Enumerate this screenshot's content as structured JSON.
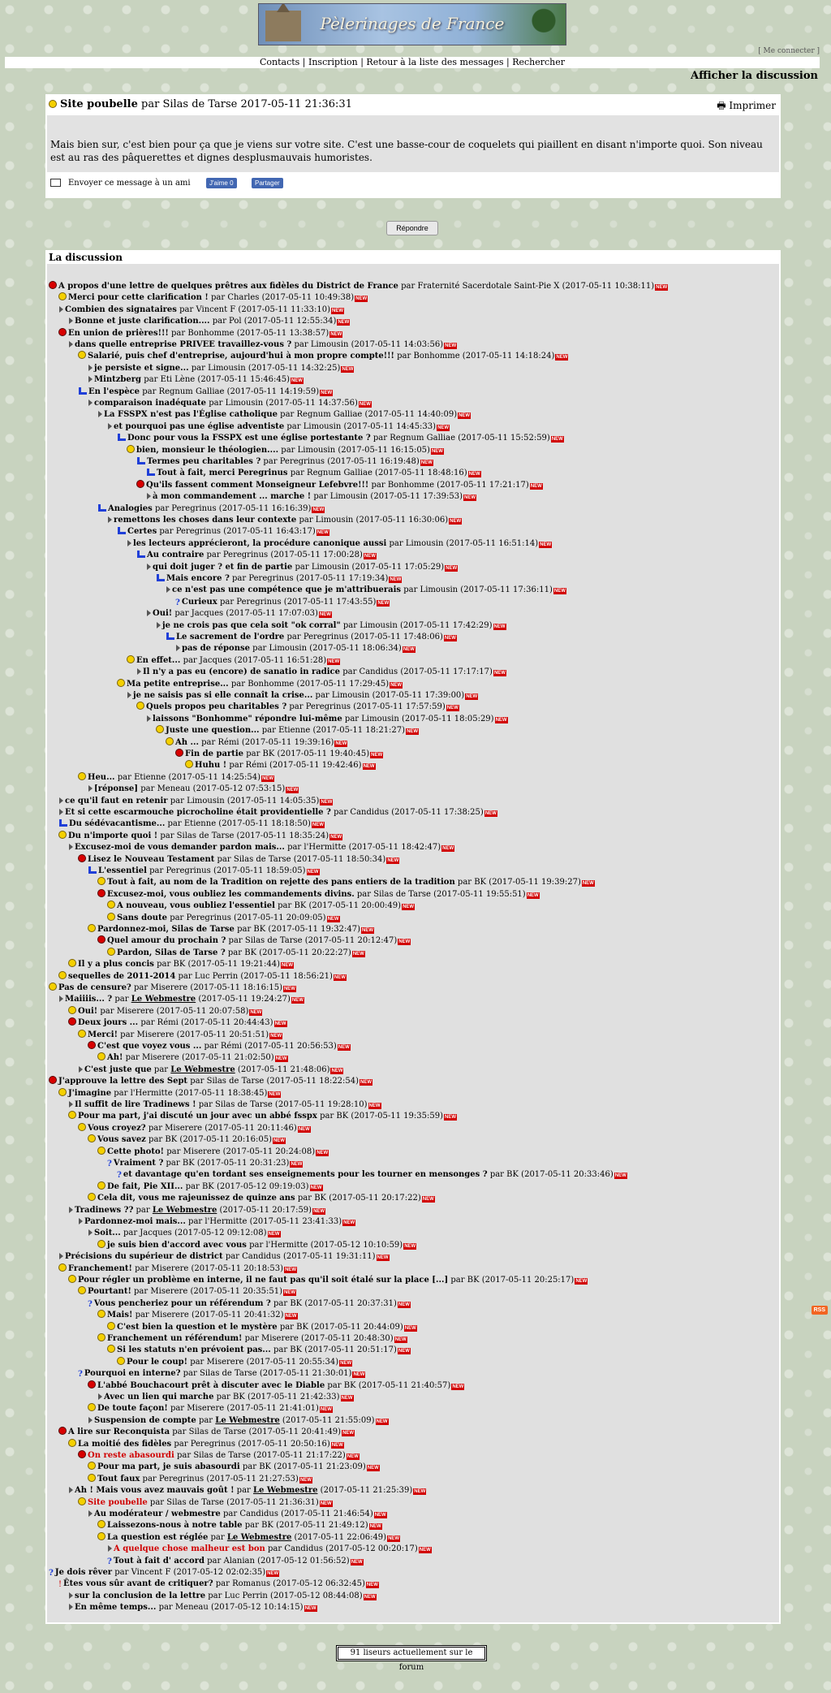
{
  "header": {
    "site_title": "Pèlerinages de France",
    "login_link": "[ Me connecter ]",
    "nav": [
      "Contacts",
      "Inscription",
      "Retour à la liste des messages",
      "Rechercher"
    ],
    "nav_sep": " | ",
    "show_discussion": "Afficher la discussion"
  },
  "message": {
    "subject": "Site poubelle",
    "by": "par",
    "author": "Silas de Tarse",
    "date": "2017-05-11 21:36:31",
    "print_label": "Imprimer",
    "body": "Mais bien sur, c'est bien pour ça que je viens sur votre site. C'est une basse-cour de coquelets qui piaillent en disant n'importe quoi. Son niveau est au ras des pâquerettes et dignes desplusmauvais humoristes.",
    "send_friend": "Envoyer ce message à un ami",
    "fb_like": "J'aime 0",
    "fb_share": "Partager",
    "reply_button": "Répondre"
  },
  "discussion": {
    "title": "La discussion",
    "new_badge": "NEW",
    "posts": [
      {
        "t": "A propos d'une lettre de quelques prêtres aux fidèles du District de France",
        "a": "Fraternité Sacerdotale Saint-Pie X",
        "d": "2017-05-11 10:38:11",
        "l": 0,
        "i": "red"
      },
      {
        "t": "Merci pour cette clarification !",
        "a": "Charles",
        "d": "2017-05-11 10:49:38",
        "l": 1,
        "i": "yellow"
      },
      {
        "t": "Combien des signataires",
        "a": "Vincent F",
        "d": "2017-05-11 11:33:10",
        "l": 1,
        "i": "sq"
      },
      {
        "t": "Bonne et juste clarification....",
        "a": "Pol",
        "d": "2017-05-11 12:55:34",
        "l": 2,
        "i": "sq"
      },
      {
        "t": "En union de prières!!!",
        "a": "Bonhomme",
        "d": "2017-05-11 13:38:57",
        "l": 1,
        "i": "red"
      },
      {
        "t": "dans quelle entreprise PRIVEE travaillez-vous ?",
        "a": "Limousin",
        "d": "2017-05-11 14:03:56",
        "l": 2,
        "i": "sq"
      },
      {
        "t": "Salarié, puis chef d'entreprise, aujourd'hui à mon propre compte!!!",
        "a": "Bonhomme",
        "d": "2017-05-11 14:18:24",
        "l": 3,
        "i": "yellow"
      },
      {
        "t": "je persiste et signe...",
        "a": "Limousin",
        "d": "2017-05-11 14:32:25",
        "l": 4,
        "i": "sq"
      },
      {
        "t": "Mintzberg",
        "a": "Eti Lène",
        "d": "2017-05-11 15:46:45",
        "l": 4,
        "i": "sq"
      },
      {
        "t": "En l'espèce",
        "a": "Regnum Galliae",
        "d": "2017-05-11 14:19:59",
        "l": 3,
        "i": "arrow"
      },
      {
        "t": "comparaison inadéquate",
        "a": "Limousin",
        "d": "2017-05-11 14:37:56",
        "l": 4,
        "i": "sq"
      },
      {
        "t": "La FSSPX n'est pas l'Église catholique",
        "a": "Regnum Galliae",
        "d": "2017-05-11 14:40:09",
        "l": 5,
        "i": "sq"
      },
      {
        "t": "et pourquoi pas une église adventiste",
        "a": "Limousin",
        "d": "2017-05-11 14:45:33",
        "l": 6,
        "i": "sq"
      },
      {
        "t": "Donc pour vous la FSSPX est une église portestante ?",
        "a": "Regnum Galliae",
        "d": "2017-05-11 15:52:59",
        "l": 7,
        "i": "arrow"
      },
      {
        "t": "bien, monsieur le théologien....",
        "a": "Limousin",
        "d": "2017-05-11 16:15:05",
        "l": 8,
        "i": "yellow"
      },
      {
        "t": "Termes peu charitables ?",
        "a": "Peregrinus",
        "d": "2017-05-11 16:19:48",
        "l": 9,
        "i": "arrow"
      },
      {
        "t": "Tout à fait, merci Peregrinus",
        "a": "Regnum Galliae",
        "d": "2017-05-11 18:48:16",
        "l": 10,
        "i": "arrow"
      },
      {
        "t": "Qu'ils fassent comment Monseigneur Lefebvre!!!",
        "a": "Bonhomme",
        "d": "2017-05-11 17:21:17",
        "l": 9,
        "i": "red"
      },
      {
        "t": "à mon commandement ... marche !",
        "a": "Limousin",
        "d": "2017-05-11 17:39:53",
        "l": 10,
        "i": "sq"
      },
      {
        "t": "Analogies",
        "a": "Peregrinus",
        "d": "2017-05-11 16:16:39",
        "l": 5,
        "i": "arrow"
      },
      {
        "t": "remettons les choses dans leur contexte",
        "a": "Limousin",
        "d": "2017-05-11 16:30:06",
        "l": 6,
        "i": "sq"
      },
      {
        "t": "Certes",
        "a": "Peregrinus",
        "d": "2017-05-11 16:43:17",
        "l": 7,
        "i": "arrow"
      },
      {
        "t": "les lecteurs apprécieront, la procédure canonique aussi",
        "a": "Limousin",
        "d": "2017-05-11 16:51:14",
        "l": 8,
        "i": "sq"
      },
      {
        "t": "Au contraire",
        "a": "Peregrinus",
        "d": "2017-05-11 17:00:28",
        "l": 9,
        "i": "arrow"
      },
      {
        "t": "qui doit juger ? et fin de partie",
        "a": "Limousin",
        "d": "2017-05-11 17:05:29",
        "l": 10,
        "i": "sq"
      },
      {
        "t": "Mais encore ?",
        "a": "Peregrinus",
        "d": "2017-05-11 17:19:34",
        "l": 11,
        "i": "arrow"
      },
      {
        "t": "ce n'est pas une compétence que je m'attribuerais",
        "a": "Limousin",
        "d": "2017-05-11 17:36:11",
        "l": 12,
        "i": "sq"
      },
      {
        "t": "Curieux",
        "a": "Peregrinus",
        "d": "2017-05-11 17:43:55",
        "l": 13,
        "i": "q"
      },
      {
        "t": "Oui!",
        "a": "Jacques",
        "d": "2017-05-11 17:07:03",
        "l": 10,
        "i": "sq"
      },
      {
        "t": "je ne crois pas que cela soit \"ok corral\"",
        "a": "Limousin",
        "d": "2017-05-11 17:42:29",
        "l": 11,
        "i": "sq"
      },
      {
        "t": "Le sacrement de l'ordre",
        "a": "Peregrinus",
        "d": "2017-05-11 17:48:06",
        "l": 12,
        "i": "arrow"
      },
      {
        "t": "pas de réponse",
        "a": "Limousin",
        "d": "2017-05-11 18:06:34",
        "l": 13,
        "i": "sq"
      },
      {
        "t": "En effet...",
        "a": "Jacques",
        "d": "2017-05-11 16:51:28",
        "l": 8,
        "i": "yellow"
      },
      {
        "t": "Il n'y a pas eu (encore) de sanatio in radice",
        "a": "Candidus",
        "d": "2017-05-11 17:17:17",
        "l": 9,
        "i": "sq"
      },
      {
        "t": "Ma petite entreprise...",
        "a": "Bonhomme",
        "d": "2017-05-11 17:29:45",
        "l": 7,
        "i": "yellow"
      },
      {
        "t": "je ne saisis pas si elle connaît la crise...",
        "a": "Limousin",
        "d": "2017-05-11 17:39:00",
        "l": 8,
        "i": "sq"
      },
      {
        "t": "Quels propos peu charitables ?",
        "a": "Peregrinus",
        "d": "2017-05-11 17:57:59",
        "l": 9,
        "i": "yellow"
      },
      {
        "t": "laissons \"Bonhomme\" répondre lui-même",
        "a": "Limousin",
        "d": "2017-05-11 18:05:29",
        "l": 10,
        "i": "sq"
      },
      {
        "t": "Juste une question...",
        "a": "Etienne",
        "d": "2017-05-11 18:21:27",
        "l": 11,
        "i": "yellow"
      },
      {
        "t": "Ah ...",
        "a": "Rémi",
        "d": "2017-05-11 19:39:16",
        "l": 12,
        "i": "yellow"
      },
      {
        "t": "Fin de partie",
        "a": "BK",
        "d": "2017-05-11 19:40:45",
        "l": 13,
        "i": "red"
      },
      {
        "t": "Huhu !",
        "a": "Rémi",
        "d": "2017-05-11 19:42:46",
        "l": 14,
        "i": "yellow"
      },
      {
        "t": "Heu...",
        "a": "Etienne",
        "d": "2017-05-11 14:25:54",
        "l": 3,
        "i": "yellow"
      },
      {
        "t": "[réponse]",
        "a": "Meneau",
        "d": "2017-05-12 07:53:15",
        "l": 4,
        "i": "sq"
      },
      {
        "t": "ce qu'il faut en retenir",
        "a": "Limousin",
        "d": "2017-05-11 14:05:35",
        "l": 1,
        "i": "sq"
      },
      {
        "t": "Et si cette escarmouche picrocholine était providentielle ?",
        "a": "Candidus",
        "d": "2017-05-11 17:38:25",
        "l": 1,
        "i": "sq"
      },
      {
        "t": "Du sédévacantisme...",
        "a": "Etienne",
        "d": "2017-05-11 18:18:50",
        "l": 1,
        "i": "arrow"
      },
      {
        "t": "Du n'importe quoi !",
        "a": "Silas de Tarse",
        "d": "2017-05-11 18:35:24",
        "l": 1,
        "i": "yellow"
      },
      {
        "t": "Excusez-moi de vous demander pardon mais...",
        "a": "l'Hermitte",
        "d": "2017-05-11 18:42:47",
        "l": 2,
        "i": "sq"
      },
      {
        "t": "Lisez le Nouveau Testament",
        "a": "Silas de Tarse",
        "d": "2017-05-11 18:50:34",
        "l": 3,
        "i": "red"
      },
      {
        "t": "L'essentiel",
        "a": "Peregrinus",
        "d": "2017-05-11 18:59:05",
        "l": 4,
        "i": "arrow"
      },
      {
        "t": "Tout à fait, au nom de la Tradition on rejette des pans entiers de la tradition",
        "a": "BK",
        "d": "2017-05-11 19:39:27",
        "l": 5,
        "i": "yellow"
      },
      {
        "t": "Excusez-moi, vous oubliez les commandements divins.",
        "a": "Silas de Tarse",
        "d": "2017-05-11 19:55:51",
        "l": 5,
        "i": "red"
      },
      {
        "t": "A nouveau, vous oubliez l'essentiel",
        "a": "BK",
        "d": "2017-05-11 20:00:49",
        "l": 6,
        "i": "yellow"
      },
      {
        "t": "Sans doute",
        "a": "Peregrinus",
        "d": "2017-05-11 20:09:05",
        "l": 6,
        "i": "yellow"
      },
      {
        "t": "Pardonnez-moi, Silas de Tarse",
        "a": "BK",
        "d": "2017-05-11 19:32:47",
        "l": 4,
        "i": "yellow"
      },
      {
        "t": "Quel amour du prochain ?",
        "a": "Silas de Tarse",
        "d": "2017-05-11 20:12:47",
        "l": 5,
        "i": "red"
      },
      {
        "t": "Pardon, Silas de Tarse ?",
        "a": "BK",
        "d": "2017-05-11 20:22:27",
        "l": 6,
        "i": "yellow"
      },
      {
        "t": "Il y a plus concis",
        "a": "BK",
        "d": "2017-05-11 19:21:44",
        "l": 2,
        "i": "yellow"
      },
      {
        "t": "sequelles de 2011-2014",
        "a": "Luc Perrin",
        "d": "2017-05-11 18:56:21",
        "l": 1,
        "i": "yellow"
      },
      {
        "t": "Pas de censure?",
        "a": "Miserere",
        "d": "2017-05-11 18:16:15",
        "l": 0,
        "i": "yellow"
      },
      {
        "t": "Maiiiis... ?",
        "a": "Le Webmestre",
        "d": "2017-05-11 19:24:27",
        "l": 1,
        "i": "sq",
        "al": true
      },
      {
        "t": "Oui!",
        "a": "Miserere",
        "d": "2017-05-11 20:07:58",
        "l": 2,
        "i": "yellow"
      },
      {
        "t": "Deux jours ...",
        "a": "Rémi",
        "d": "2017-05-11 20:44:43",
        "l": 2,
        "i": "red"
      },
      {
        "t": "Merci!",
        "a": "Miserere",
        "d": "2017-05-11 20:51:51",
        "l": 3,
        "i": "yellow"
      },
      {
        "t": "C'est que voyez vous ...",
        "a": "Rémi",
        "d": "2017-05-11 20:56:53",
        "l": 4,
        "i": "red"
      },
      {
        "t": "Ah!",
        "a": "Miserere",
        "d": "2017-05-11 21:02:50",
        "l": 5,
        "i": "yellow"
      },
      {
        "t": "C'est juste que",
        "a": "Le Webmestre",
        "d": "2017-05-11 21:48:06",
        "l": 3,
        "i": "sq",
        "al": true
      },
      {
        "t": "J'approuve la lettre des Sept",
        "a": "Silas de Tarse",
        "d": "2017-05-11 18:22:54",
        "l": 0,
        "i": "red"
      },
      {
        "t": "J'imagine",
        "a": "l'Hermitte",
        "d": "2017-05-11 18:38:45",
        "l": 1,
        "i": "yellow"
      },
      {
        "t": "Il suffit de lire Tradinews !",
        "a": "Silas de Tarse",
        "d": "2017-05-11 19:28:10",
        "l": 2,
        "i": "sq"
      },
      {
        "t": "Pour ma part, j'ai discuté un jour avec un abbé fsspx",
        "a": "BK",
        "d": "2017-05-11 19:35:59",
        "l": 2,
        "i": "yellow"
      },
      {
        "t": "Vous croyez?",
        "a": "Miserere",
        "d": "2017-05-11 20:11:46",
        "l": 3,
        "i": "yellow"
      },
      {
        "t": "Vous savez",
        "a": "BK",
        "d": "2017-05-11 20:16:05",
        "l": 4,
        "i": "yellow"
      },
      {
        "t": "Cette photo!",
        "a": "Miserere",
        "d": "2017-05-11 20:24:08",
        "l": 5,
        "i": "yellow"
      },
      {
        "t": "Vraiment ?",
        "a": "BK",
        "d": "2017-05-11 20:31:23",
        "l": 6,
        "i": "q"
      },
      {
        "t": "et davantage qu'en tordant ses enseignements pour les tourner en mensonges ?",
        "a": "BK",
        "d": "2017-05-11 20:33:46",
        "l": 7,
        "i": "q"
      },
      {
        "t": "De fait, Pie XII...",
        "a": "BK",
        "d": "2017-05-12 09:19:03",
        "l": 5,
        "i": "yellow"
      },
      {
        "t": "Cela dit, vous me rajeunissez de quinze ans",
        "a": "BK",
        "d": "2017-05-11 20:17:22",
        "l": 4,
        "i": "yellow"
      },
      {
        "t": "Tradinews ??",
        "a": "Le Webmestre",
        "d": "2017-05-11 20:17:59",
        "l": 2,
        "i": "sq",
        "al": true
      },
      {
        "t": "Pardonnez-moi mais...",
        "a": "l'Hermitte",
        "d": "2017-05-11 23:41:33",
        "l": 3,
        "i": "sq"
      },
      {
        "t": "Soit...",
        "a": "Jacques",
        "d": "2017-05-12 09:12:08",
        "l": 4,
        "i": "sq"
      },
      {
        "t": "je suis bien d'accord avec vous",
        "a": "l'Hermitte",
        "d": "2017-05-12 10:10:59",
        "l": 5,
        "i": "yellow"
      },
      {
        "t": "Précisions du supérieur de district",
        "a": "Candidus",
        "d": "2017-05-11 19:31:11",
        "l": 1,
        "i": "sq"
      },
      {
        "t": "Franchement!",
        "a": "Miserere",
        "d": "2017-05-11 20:18:53",
        "l": 1,
        "i": "yellow"
      },
      {
        "t": "Pour régler un problème en interne, il ne faut pas qu'il soit étalé sur la place [...]",
        "a": "BK",
        "d": "2017-05-11 20:25:17",
        "l": 2,
        "i": "yellow"
      },
      {
        "t": "Pourtant!",
        "a": "Miserere",
        "d": "2017-05-11 20:35:51",
        "l": 3,
        "i": "yellow"
      },
      {
        "t": "Vous pencheriez pour un référendum ?",
        "a": "BK",
        "d": "2017-05-11 20:37:31",
        "l": 4,
        "i": "q"
      },
      {
        "t": "Mais!",
        "a": "Miserere",
        "d": "2017-05-11 20:41:32",
        "l": 5,
        "i": "yellow"
      },
      {
        "t": "C'est bien la question et le mystère",
        "a": "BK",
        "d": "2017-05-11 20:44:09",
        "l": 6,
        "i": "yellow"
      },
      {
        "t": "Franchement un référendum!",
        "a": "Miserere",
        "d": "2017-05-11 20:48:30",
        "l": 5,
        "i": "yellow"
      },
      {
        "t": "Si les statuts n'en prévoient pas...",
        "a": "BK",
        "d": "2017-05-11 20:51:17",
        "l": 6,
        "i": "yellow"
      },
      {
        "t": "Pour le coup!",
        "a": "Miserere",
        "d": "2017-05-11 20:55:34",
        "l": 7,
        "i": "yellow"
      },
      {
        "t": "Pourquoi en interne?",
        "a": "Silas de Tarse",
        "d": "2017-05-11 21:30:01",
        "l": 3,
        "i": "q"
      },
      {
        "t": "L'abbé Bouchacourt prêt à discuter avec le Diable",
        "a": "BK",
        "d": "2017-05-11 21:40:57",
        "l": 4,
        "i": "red"
      },
      {
        "t": "Avec un lien qui marche",
        "a": "BK",
        "d": "2017-05-11 21:42:33",
        "l": 5,
        "i": "sq"
      },
      {
        "t": "De toute façon!",
        "a": "Miserere",
        "d": "2017-05-11 21:41:01",
        "l": 4,
        "i": "yellow"
      },
      {
        "t": "Suspension de compte",
        "a": "Le Webmestre",
        "d": "2017-05-11 21:55:09",
        "l": 4,
        "i": "sq",
        "al": true
      },
      {
        "t": "A lire sur Reconquista",
        "a": "Silas de Tarse",
        "d": "2017-05-11 20:41:49",
        "l": 1,
        "i": "red"
      },
      {
        "t": "La moitié des fidèles",
        "a": "Peregrinus",
        "d": "2017-05-11 20:50:16",
        "l": 2,
        "i": "yellow"
      },
      {
        "t": "On reste abasourdi",
        "a": "Silas de Tarse",
        "d": "2017-05-11 21:17:22",
        "l": 3,
        "i": "red",
        "red": true
      },
      {
        "t": "Pour ma part, je suis abasourdi",
        "a": "BK",
        "d": "2017-05-11 21:23:09",
        "l": 4,
        "i": "yellow"
      },
      {
        "t": "Tout faux",
        "a": "Peregrinus",
        "d": "2017-05-11 21:27:53",
        "l": 4,
        "i": "yellow"
      },
      {
        "t": "Ah ! Mais vous avez mauvais goût !",
        "a": "Le Webmestre",
        "d": "2017-05-11 21:25:39",
        "l": 2,
        "i": "sq",
        "al": true
      },
      {
        "t": "Site poubelle",
        "a": "Silas de Tarse",
        "d": "2017-05-11 21:36:31",
        "l": 3,
        "i": "yellow",
        "red": true
      },
      {
        "t": "Au modérateur / webmestre",
        "a": "Candidus",
        "d": "2017-05-11 21:46:54",
        "l": 4,
        "i": "sq"
      },
      {
        "t": "Laissezons-nous à notre table",
        "a": "BK",
        "d": "2017-05-11 21:49:12",
        "l": 5,
        "i": "yellow"
      },
      {
        "t": "La question est réglée",
        "a": "Le Webmestre",
        "d": "2017-05-11 22:06:49",
        "l": 5,
        "i": "yellow",
        "al": true
      },
      {
        "t": "A quelque chose malheur est bon",
        "a": "Candidus",
        "d": "2017-05-12 00:20:17",
        "l": 6,
        "i": "sq",
        "red": true
      },
      {
        "t": "Tout à fait d' accord",
        "a": "Alanian",
        "d": "2017-05-12 01:56:52",
        "l": 6,
        "i": "q"
      },
      {
        "t": "Je dois rêver",
        "a": "Vincent F",
        "d": "2017-05-12 02:02:35",
        "l": 0,
        "i": "q"
      },
      {
        "t": "Êtes vous sûr avant de critiquer?",
        "a": "Romanus",
        "d": "2017-05-12 06:32:45",
        "l": 1,
        "i": "check"
      },
      {
        "t": "sur la conclusion de la lettre",
        "a": "Luc Perrin",
        "d": "2017-05-12 08:44:08",
        "l": 2,
        "i": "sq"
      },
      {
        "t": "En même temps...",
        "a": "Meneau",
        "d": "2017-05-12 10:14:15",
        "l": 2,
        "i": "sq"
      }
    ]
  },
  "footer": {
    "rss_label": "RSS",
    "readers": "91 liseurs actuellement sur le forum"
  },
  "colors": {
    "background": "#c8d3bf",
    "new_badge": "#d10000",
    "highlight_title": "#d00000",
    "arrow_icon": "#1f3fd8"
  }
}
